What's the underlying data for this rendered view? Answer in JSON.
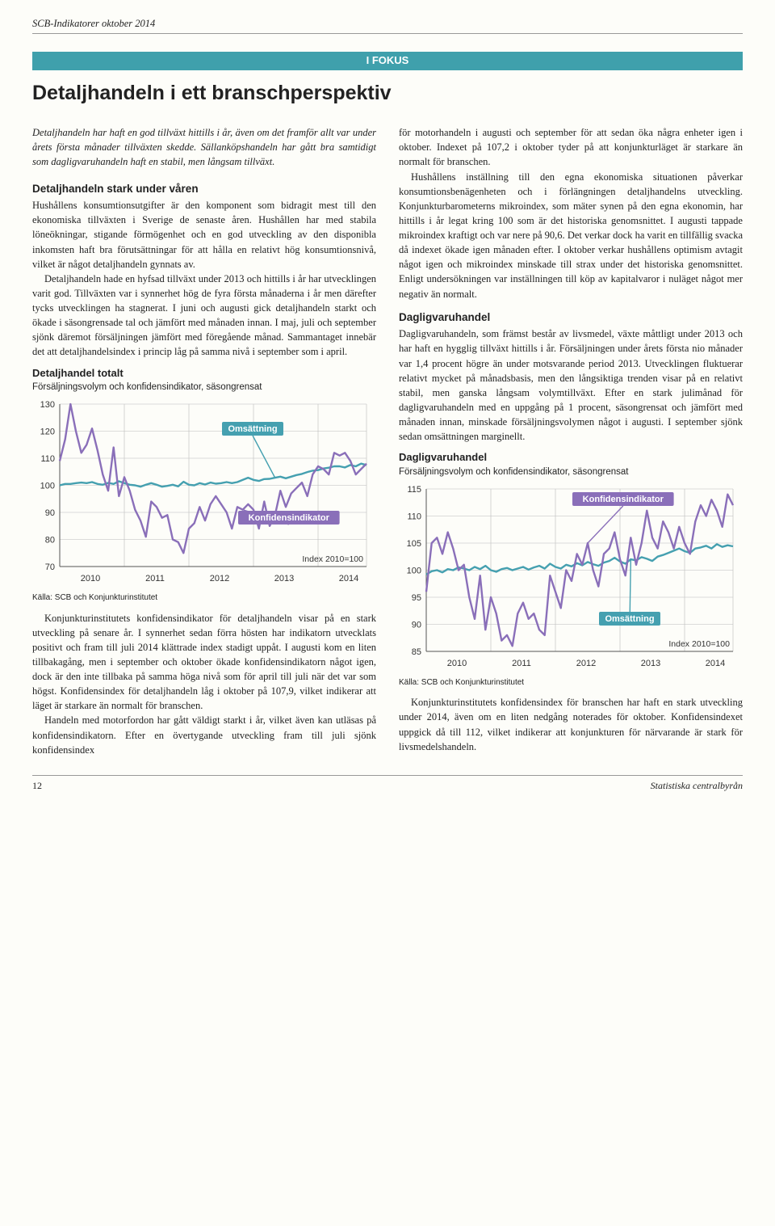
{
  "header": {
    "text": "SCB-Indikatorer oktober 2014"
  },
  "focus": {
    "label": "I FOKUS"
  },
  "title": "Detaljhandeln i ett branschperspektiv",
  "left": {
    "lede": "Detaljhandeln har haft en god tillväxt hittills i år, även om det framför allt var under årets första månader tillväxten skedde. Sällanköpshandeln har gått bra samtidigt som dagligvaruhandeln haft en stabil, men långsam tillväxt.",
    "sub1": "Detaljhandeln stark under våren",
    "p1a": "Hushållens konsumtionsutgifter är den komponent som bidragit mest till den ekonomiska tillväxten i Sverige de senaste åren. Hushållen har med stabila löneökningar, stigande förmögenhet och en god utveckling av den disponibla inkomsten haft bra förutsättningar för att hålla en relativt hög konsumtionsnivå, vilket är något detaljhandeln gynnats av.",
    "p1b": "Detaljhandeln hade en hyfsad tillväxt under 2013 och hittills i år har utvecklingen varit god. Tillväxten var i synnerhet hög de fyra första månaderna i år men därefter tycks utvecklingen ha stagnerat. I juni och augusti gick detaljhandeln starkt och ökade i säsongrensade tal och jämfört med månaden innan. I maj, juli och september sjönk däremot försäljningen jämfört med föregående månad. Sammantaget innebär det att detaljhandelsindex i princip låg på samma nivå i september som i april.",
    "p2a": "Konjunkturinstitutets konfidensindikator för detaljhandeln visar på en stark utveckling på senare år. I synnerhet sedan förra hösten har indikatorn utvecklats positivt och fram till juli 2014 klättrade index stadigt uppåt. I augusti kom en liten tillbakagång, men i september och oktober ökade konfidensindikatorn något igen, dock är den inte tillbaka på samma höga nivå som för april till juli när det var som högst. Konfidensindex för detaljhandeln låg i oktober på 107,9, vilket indikerar att läget är starkare än normalt för branschen.",
    "p2b": "Handeln med motorfordon har gått väldigt starkt i år, vilket även kan utläsas på konfidensindikatorn. Efter en övertygande utveckling fram till juli sjönk konfidensindex"
  },
  "right": {
    "p1a": "för motorhandeln i augusti och september för att sedan öka några enheter igen i oktober. Indexet på 107,2 i oktober tyder på att konjunkturläget är starkare än normalt för branschen.",
    "p1b": "Hushållens inställning till den egna ekonomiska situationen påverkar konsumtionsbenägenheten och i förlängningen detaljhandelns utveckling. Konjunkturbarometerns mikroindex, som mäter synen på den egna ekonomin, har hittills i år legat kring 100 som är det historiska genomsnittet. I augusti tappade mikroindex kraftigt och var nere på 90,6. Det verkar dock ha varit en tillfällig svacka då indexet ökade igen månaden efter. I oktober verkar hushållens optimism avtagit något igen och mikroindex minskade till strax under det historiska genomsnittet. Enligt undersökningen var inställningen till köp av kapitalvaror i nuläget något mer negativ än normalt.",
    "sub2": "Dagligvaruhandel",
    "p2a": "Dagligvaruhandeln, som främst består av livsmedel, växte måttligt under 2013 och har haft en hygglig tillväxt hittills i år. Försäljningen under årets första nio månader var 1,4 procent högre än under motsvarande period 2013. Utvecklingen fluktuerar relativt mycket på månadsbasis, men den långsiktiga trenden visar på en relativt stabil, men ganska långsam volymtillväxt. Efter en stark julimånad för dagligvaruhandeln med en uppgång på 1 procent, säsongrensat och jämfört med månaden innan, minskade försäljningsvolymen något i augusti. I september sjönk sedan omsättningen marginellt.",
    "p3a": "Konjunkturinstitutets konfidensindex för branschen har haft en stark utveckling under 2014, även om en liten nedgång noterades för oktober. Konfidensindexet uppgick då till 112, vilket indikerar att konjunkturen för närvarande är stark för livsmedelshandeln."
  },
  "chart1": {
    "title": "Detaljhandel totalt",
    "sub": "Försäljningsvolym och konfidensindikator, säsongrensat",
    "ylim": [
      70,
      130
    ],
    "ytick_step": 10,
    "years": [
      "2010",
      "2011",
      "2012",
      "2013",
      "2014"
    ],
    "caption_index": "Index 2010=100",
    "source": "Källa: SCB och Konjunkturinstitutet",
    "label_oms": "Omsättning",
    "label_konf": "Konfidensindikator",
    "colors": {
      "oms": "#45a0b0",
      "konf": "#8a6fb9",
      "grid": "#bbbbbb",
      "badge_bg_oms": "#45a0b0",
      "badge_bg_konf": "#8a6fb9",
      "badge_text": "#ffffff"
    },
    "oms": [
      100,
      100.5,
      100.5,
      100.8,
      101,
      100.8,
      101.2,
      100.5,
      100.2,
      100.9,
      100.5,
      101.5,
      100.8,
      100.2,
      100,
      99.5,
      100.2,
      100.8,
      100.2,
      99.5,
      99.8,
      100.2,
      99.6,
      101.3,
      100.2,
      100,
      100.8,
      100.3,
      101,
      100.6,
      100.8,
      101.2,
      100.8,
      101.2,
      102,
      102.8,
      102,
      101.6,
      102.3,
      102.4,
      102.8,
      103.2,
      102.6,
      103.2,
      103.8,
      104.2,
      104.9,
      105.4,
      105.6,
      106.2,
      106.5,
      107,
      107,
      106.6,
      107.5,
      107,
      108,
      107.5
    ],
    "konf": [
      109,
      117,
      130,
      120,
      112,
      115,
      121,
      113,
      104,
      98,
      114,
      96,
      103,
      98,
      91,
      87,
      81,
      94,
      92,
      88,
      89,
      80,
      79,
      75,
      84,
      86,
      92,
      87,
      93,
      96,
      93,
      90,
      84,
      92,
      91,
      93,
      91,
      84,
      94,
      85,
      89,
      98,
      92,
      97,
      99,
      101,
      96,
      104,
      107,
      106,
      104,
      112,
      111,
      112,
      109,
      104,
      106,
      108
    ]
  },
  "chart2": {
    "title": "Dagligvaruhandel",
    "sub": "Försäljningsvolym och konfidensindikator, säsongrensat",
    "ylim": [
      85,
      115
    ],
    "ytick_step": 5,
    "years": [
      "2010",
      "2011",
      "2012",
      "2013",
      "2014"
    ],
    "caption_index": "Index 2010=100",
    "source": "Källa: SCB och Konjunkturinstitutet",
    "label_oms": "Omsättning",
    "label_konf": "Konfidensindikator",
    "colors": {
      "oms": "#45a0b0",
      "konf": "#8a6fb9",
      "grid": "#bbbbbb",
      "badge_bg_oms": "#45a0b0",
      "badge_bg_konf": "#8a6fb9",
      "badge_text": "#ffffff"
    },
    "oms": [
      99.2,
      99.8,
      100,
      99.6,
      100.2,
      100,
      100.5,
      100.3,
      100,
      100.6,
      100.2,
      100.8,
      100,
      99.7,
      100.2,
      100.4,
      100,
      100.3,
      100.6,
      100.1,
      100.5,
      100.8,
      100.3,
      101.2,
      100.6,
      100.3,
      101,
      100.7,
      101.3,
      100.9,
      101.5,
      101.1,
      100.8,
      101.4,
      101.7,
      102.3,
      101.6,
      101.2,
      102,
      101.8,
      102.4,
      102.1,
      101.7,
      102.5,
      102.8,
      103.2,
      103.6,
      104,
      103.5,
      103.2,
      104,
      104.2,
      104.5,
      104,
      104.8,
      104.3,
      104.6,
      104.4
    ],
    "konf": [
      96,
      105,
      106,
      103,
      107,
      104,
      100,
      101,
      95,
      91,
      99,
      89,
      95,
      92,
      87,
      88,
      86,
      92,
      94,
      91,
      92,
      89,
      88,
      99,
      96,
      93,
      100,
      98,
      103,
      101,
      105,
      100,
      97,
      103,
      104,
      107,
      102,
      99,
      106,
      101,
      105,
      111,
      106,
      104,
      109,
      107,
      104,
      108,
      105,
      103,
      109,
      112,
      110,
      113,
      111,
      108,
      114,
      112
    ]
  },
  "footer": {
    "pagenum": "12",
    "publisher": "Statistiska centralbyrån"
  }
}
